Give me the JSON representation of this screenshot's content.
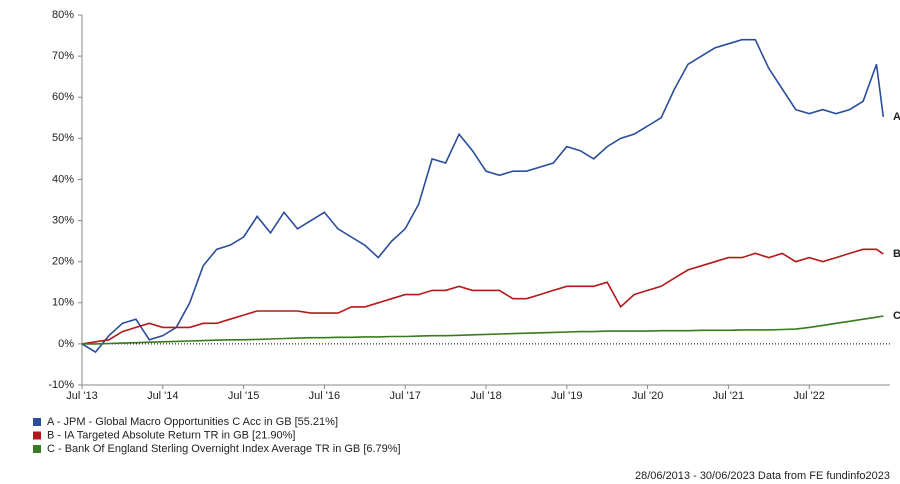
{
  "chart_data": {
    "type": "line",
    "x": [
      "2013-07",
      "2013-09",
      "2013-11",
      "2014-01",
      "2014-03",
      "2014-05",
      "2014-07",
      "2014-09",
      "2014-11",
      "2015-01",
      "2015-03",
      "2015-05",
      "2015-07",
      "2015-09",
      "2015-11",
      "2016-01",
      "2016-03",
      "2016-05",
      "2016-07",
      "2016-09",
      "2016-11",
      "2017-01",
      "2017-03",
      "2017-05",
      "2017-07",
      "2017-09",
      "2017-11",
      "2018-01",
      "2018-03",
      "2018-05",
      "2018-07",
      "2018-09",
      "2018-11",
      "2019-01",
      "2019-03",
      "2019-05",
      "2019-07",
      "2019-09",
      "2019-11",
      "2020-01",
      "2020-03",
      "2020-05",
      "2020-07",
      "2020-09",
      "2020-11",
      "2021-01",
      "2021-03",
      "2021-05",
      "2021-07",
      "2021-09",
      "2021-11",
      "2022-01",
      "2022-03",
      "2022-05",
      "2022-07",
      "2022-09",
      "2022-11",
      "2023-01",
      "2023-03",
      "2023-05",
      "2023-06"
    ],
    "series": [
      {
        "name": "A - JPM - Global Macro Opportunities C Acc in GB [55.21%]",
        "marker": "A",
        "color": "#2a4d9c",
        "values": [
          0,
          -2,
          2,
          5,
          6,
          1,
          2,
          4,
          10,
          19,
          23,
          24,
          26,
          31,
          27,
          32,
          28,
          30,
          32,
          28,
          26,
          24,
          21,
          25,
          28,
          34,
          45,
          44,
          51,
          47,
          42,
          41,
          42,
          42,
          43,
          44,
          48,
          47,
          45,
          48,
          50,
          51,
          53,
          55,
          62,
          68,
          70,
          72,
          73,
          74,
          74,
          67,
          62,
          57,
          56,
          57,
          56,
          57,
          59,
          68,
          55.21
        ]
      },
      {
        "name": "B - IA Targeted Absolute Return TR in GB [21.90%]",
        "marker": "B",
        "color": "#b3191b",
        "values": [
          0,
          0.5,
          1,
          3,
          4,
          5,
          4,
          4,
          4,
          5,
          5,
          6,
          7,
          8,
          8,
          8,
          8,
          7.5,
          7.5,
          7.5,
          9,
          9,
          10,
          11,
          12,
          12,
          13,
          13,
          14,
          13,
          13,
          13,
          11,
          11,
          12,
          13,
          14,
          14,
          14,
          15,
          9,
          12,
          13,
          14,
          16,
          18,
          19,
          20,
          21,
          21,
          22,
          21,
          22,
          20,
          21,
          20,
          21,
          22,
          23,
          23,
          21.9
        ]
      },
      {
        "name": "C - Bank Of England Sterling Overnight Index Average TR in GB [6.79%]",
        "marker": "C",
        "color": "#3a7a1e",
        "values": [
          0,
          0,
          0.1,
          0.2,
          0.3,
          0.4,
          0.5,
          0.6,
          0.7,
          0.8,
          0.9,
          1,
          1,
          1.1,
          1.2,
          1.3,
          1.4,
          1.5,
          1.5,
          1.6,
          1.6,
          1.7,
          1.7,
          1.8,
          1.8,
          1.9,
          2,
          2,
          2.1,
          2.2,
          2.3,
          2.4,
          2.5,
          2.6,
          2.7,
          2.8,
          2.9,
          3,
          3,
          3.1,
          3.1,
          3.1,
          3.1,
          3.2,
          3.2,
          3.2,
          3.3,
          3.3,
          3.3,
          3.4,
          3.4,
          3.4,
          3.5,
          3.6,
          4,
          4.5,
          5,
          5.5,
          6,
          6.5,
          6.79
        ]
      }
    ],
    "xlim": [
      "2013-07",
      "2023-07"
    ],
    "xticks": [
      {
        "value": "2013-07",
        "label": "Jul '13"
      },
      {
        "value": "2014-07",
        "label": "Jul '14"
      },
      {
        "value": "2015-07",
        "label": "Jul '15"
      },
      {
        "value": "2016-07",
        "label": "Jul '16"
      },
      {
        "value": "2017-07",
        "label": "Jul '17"
      },
      {
        "value": "2018-07",
        "label": "Jul '18"
      },
      {
        "value": "2019-07",
        "label": "Jul '19"
      },
      {
        "value": "2020-07",
        "label": "Jul '20"
      },
      {
        "value": "2021-07",
        "label": "Jul '21"
      },
      {
        "value": "2022-07",
        "label": "Jul '22"
      }
    ],
    "ylim": [
      -10,
      80
    ],
    "yticks": [
      {
        "value": -10,
        "label": "-10%"
      },
      {
        "value": 0,
        "label": "0%"
      },
      {
        "value": 10,
        "label": "10%"
      },
      {
        "value": 20,
        "label": "20%"
      },
      {
        "value": 30,
        "label": "30%"
      },
      {
        "value": 40,
        "label": "40%"
      },
      {
        "value": 50,
        "label": "50%"
      },
      {
        "value": 60,
        "label": "60%"
      },
      {
        "value": 70,
        "label": "70%"
      },
      {
        "value": 80,
        "label": "80%"
      }
    ],
    "zero_line": true,
    "source": "28/06/2013 - 30/06/2023 Data from FE fundinfo2023"
  }
}
